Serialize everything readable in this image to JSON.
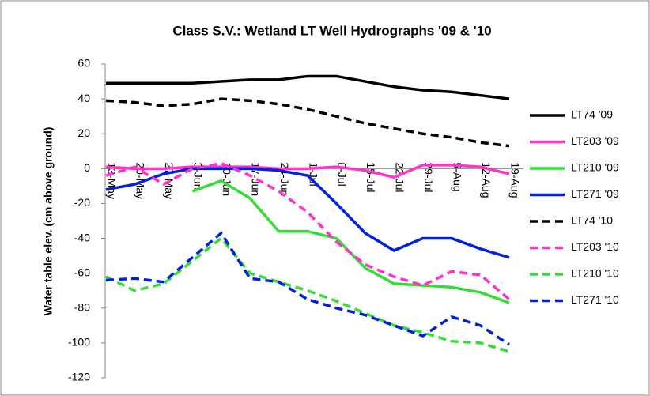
{
  "chart_data": {
    "type": "line",
    "title": "Class S.V.: Wetland LT Well Hydrographs '09 & '10",
    "y_label": "Water table elev. (cm above ground)",
    "categories": [
      "13-May",
      "20-May",
      "27-May",
      "3-Jun",
      "10-Jun",
      "17-Jun",
      "24-Jun",
      "1-Jul",
      "8-Jul",
      "15-Jul",
      "22-Jul",
      "29-Jul",
      "5-Aug",
      "12-Aug",
      "19-Aug"
    ],
    "ylim": [
      -120,
      60
    ],
    "yticks": [
      -120,
      -100,
      -80,
      -60,
      -40,
      -20,
      0,
      20,
      40,
      60
    ],
    "legend": "right",
    "series": [
      {
        "name": "LT74 '09",
        "color": "#000000",
        "dash": false,
        "values": [
          49,
          49,
          49,
          49,
          50,
          51,
          51,
          53,
          53,
          50,
          47,
          45,
          44,
          42,
          40
        ]
      },
      {
        "name": "LT203 '09",
        "color": "#ff33cc",
        "dash": false,
        "values": [
          1,
          0,
          0,
          1,
          1,
          1,
          0,
          0,
          1,
          -1,
          -5,
          2,
          2,
          1,
          -3
        ]
      },
      {
        "name": "LT210 '09",
        "color": "#33dd33",
        "dash": false,
        "values": [
          null,
          null,
          null,
          -13,
          -7,
          -17,
          -36,
          -36,
          -40,
          -57,
          -66,
          -67,
          -68,
          -71,
          -77
        ]
      },
      {
        "name": "LT271 '09",
        "color": "#0022dd",
        "dash": false,
        "values": [
          -12,
          -9,
          -3,
          0,
          0,
          0,
          -1,
          -4,
          -20,
          -37,
          -47,
          -40,
          -40,
          -46,
          -51
        ]
      },
      {
        "name": "LT74 '10",
        "color": "#000000",
        "dash": true,
        "values": [
          39,
          38,
          36,
          37,
          40,
          39,
          37,
          34,
          30,
          26,
          23,
          20,
          18,
          15,
          13
        ]
      },
      {
        "name": "LT203 '10",
        "color": "#ff33cc",
        "dash": true,
        "values": [
          -4,
          1,
          -9,
          0,
          3,
          -4,
          -13,
          -25,
          -42,
          -55,
          -62,
          -67,
          -59,
          -61,
          -75
        ]
      },
      {
        "name": "LT210 '10",
        "color": "#33dd33",
        "dash": true,
        "values": [
          -62,
          -70,
          -66,
          -53,
          -40,
          -60,
          -65,
          -70,
          -76,
          -83,
          -90,
          -94,
          -99,
          -100,
          -105
        ]
      },
      {
        "name": "LT271 '10",
        "color": "#0022dd",
        "dash": true,
        "values": [
          -64,
          -63,
          -65,
          -51,
          -37,
          -63,
          -65,
          -75,
          -80,
          -84,
          -90,
          -96,
          -85,
          -90,
          -101
        ]
      }
    ]
  }
}
